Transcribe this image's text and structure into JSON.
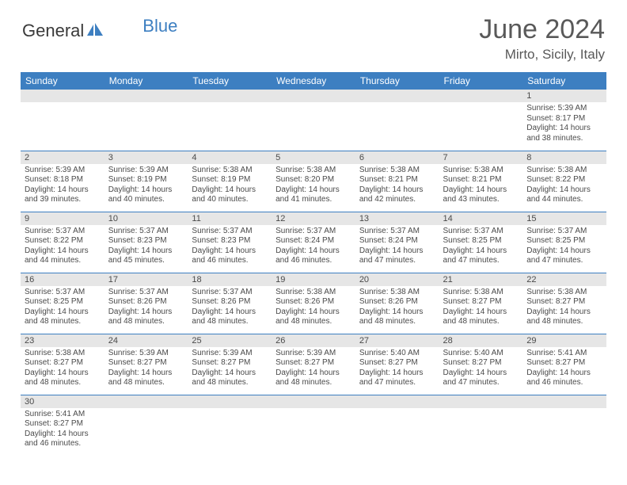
{
  "branding": {
    "logo_text_1": "General",
    "logo_text_2": "Blue",
    "logo_color_gray": "#3a3a3a",
    "logo_color_blue": "#3d7fc1"
  },
  "header": {
    "month_title": "June 2024",
    "location": "Mirto, Sicily, Italy"
  },
  "styling": {
    "header_bg": "#3d7fc1",
    "header_text_color": "#ffffff",
    "daynum_bg": "#e6e6e6",
    "cell_border_color": "#3d7fc1",
    "body_text_color": "#4a4a4a",
    "title_color": "#595959",
    "page_bg": "#ffffff",
    "month_title_fontsize": 34,
    "location_fontsize": 17,
    "weekday_fontsize": 12,
    "daynum_fontsize": 11,
    "body_fontsize": 10
  },
  "weekdays": [
    "Sunday",
    "Monday",
    "Tuesday",
    "Wednesday",
    "Thursday",
    "Friday",
    "Saturday"
  ],
  "weeks": [
    [
      null,
      null,
      null,
      null,
      null,
      null,
      {
        "n": "1",
        "sr": "5:39 AM",
        "ss": "8:17 PM",
        "dl": "14 hours and 38 minutes."
      }
    ],
    [
      {
        "n": "2",
        "sr": "5:39 AM",
        "ss": "8:18 PM",
        "dl": "14 hours and 39 minutes."
      },
      {
        "n": "3",
        "sr": "5:39 AM",
        "ss": "8:19 PM",
        "dl": "14 hours and 40 minutes."
      },
      {
        "n": "4",
        "sr": "5:38 AM",
        "ss": "8:19 PM",
        "dl": "14 hours and 40 minutes."
      },
      {
        "n": "5",
        "sr": "5:38 AM",
        "ss": "8:20 PM",
        "dl": "14 hours and 41 minutes."
      },
      {
        "n": "6",
        "sr": "5:38 AM",
        "ss": "8:21 PM",
        "dl": "14 hours and 42 minutes."
      },
      {
        "n": "7",
        "sr": "5:38 AM",
        "ss": "8:21 PM",
        "dl": "14 hours and 43 minutes."
      },
      {
        "n": "8",
        "sr": "5:38 AM",
        "ss": "8:22 PM",
        "dl": "14 hours and 44 minutes."
      }
    ],
    [
      {
        "n": "9",
        "sr": "5:37 AM",
        "ss": "8:22 PM",
        "dl": "14 hours and 44 minutes."
      },
      {
        "n": "10",
        "sr": "5:37 AM",
        "ss": "8:23 PM",
        "dl": "14 hours and 45 minutes."
      },
      {
        "n": "11",
        "sr": "5:37 AM",
        "ss": "8:23 PM",
        "dl": "14 hours and 46 minutes."
      },
      {
        "n": "12",
        "sr": "5:37 AM",
        "ss": "8:24 PM",
        "dl": "14 hours and 46 minutes."
      },
      {
        "n": "13",
        "sr": "5:37 AM",
        "ss": "8:24 PM",
        "dl": "14 hours and 47 minutes."
      },
      {
        "n": "14",
        "sr": "5:37 AM",
        "ss": "8:25 PM",
        "dl": "14 hours and 47 minutes."
      },
      {
        "n": "15",
        "sr": "5:37 AM",
        "ss": "8:25 PM",
        "dl": "14 hours and 47 minutes."
      }
    ],
    [
      {
        "n": "16",
        "sr": "5:37 AM",
        "ss": "8:25 PM",
        "dl": "14 hours and 48 minutes."
      },
      {
        "n": "17",
        "sr": "5:37 AM",
        "ss": "8:26 PM",
        "dl": "14 hours and 48 minutes."
      },
      {
        "n": "18",
        "sr": "5:37 AM",
        "ss": "8:26 PM",
        "dl": "14 hours and 48 minutes."
      },
      {
        "n": "19",
        "sr": "5:38 AM",
        "ss": "8:26 PM",
        "dl": "14 hours and 48 minutes."
      },
      {
        "n": "20",
        "sr": "5:38 AM",
        "ss": "8:26 PM",
        "dl": "14 hours and 48 minutes."
      },
      {
        "n": "21",
        "sr": "5:38 AM",
        "ss": "8:27 PM",
        "dl": "14 hours and 48 minutes."
      },
      {
        "n": "22",
        "sr": "5:38 AM",
        "ss": "8:27 PM",
        "dl": "14 hours and 48 minutes."
      }
    ],
    [
      {
        "n": "23",
        "sr": "5:38 AM",
        "ss": "8:27 PM",
        "dl": "14 hours and 48 minutes."
      },
      {
        "n": "24",
        "sr": "5:39 AM",
        "ss": "8:27 PM",
        "dl": "14 hours and 48 minutes."
      },
      {
        "n": "25",
        "sr": "5:39 AM",
        "ss": "8:27 PM",
        "dl": "14 hours and 48 minutes."
      },
      {
        "n": "26",
        "sr": "5:39 AM",
        "ss": "8:27 PM",
        "dl": "14 hours and 48 minutes."
      },
      {
        "n": "27",
        "sr": "5:40 AM",
        "ss": "8:27 PM",
        "dl": "14 hours and 47 minutes."
      },
      {
        "n": "28",
        "sr": "5:40 AM",
        "ss": "8:27 PM",
        "dl": "14 hours and 47 minutes."
      },
      {
        "n": "29",
        "sr": "5:41 AM",
        "ss": "8:27 PM",
        "dl": "14 hours and 46 minutes."
      }
    ],
    [
      {
        "n": "30",
        "sr": "5:41 AM",
        "ss": "8:27 PM",
        "dl": "14 hours and 46 minutes."
      },
      null,
      null,
      null,
      null,
      null,
      null
    ]
  ],
  "labels": {
    "sunrise": "Sunrise:",
    "sunset": "Sunset:",
    "daylight": "Daylight:"
  }
}
